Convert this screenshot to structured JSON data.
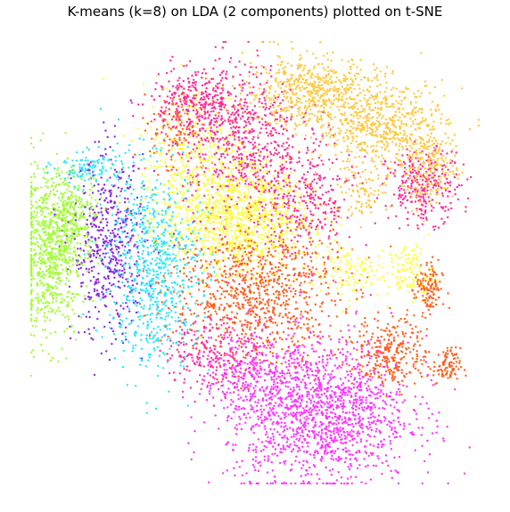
{
  "chart_data": {
    "type": "scatter",
    "title": "K-means (k=8) on LDA (2 components) plotted on t-SNE",
    "xlabel": "",
    "ylabel": "",
    "axes_visible": false,
    "grid": false,
    "legend": "none",
    "xlim": [
      0,
      100
    ],
    "ylim": [
      0,
      100
    ],
    "series": [
      {
        "color": "#9eff2e",
        "clusters": [
          {
            "cx": 5,
            "cy": 52,
            "sx": 3.5,
            "sy": 9,
            "n": 700
          },
          {
            "cx": 10,
            "cy": 60,
            "sx": 3,
            "sy": 5,
            "n": 250
          }
        ]
      },
      {
        "color": "#8a2be2",
        "clusters": [
          {
            "cx": 18,
            "cy": 53,
            "sx": 4,
            "sy": 10,
            "n": 500
          }
        ]
      },
      {
        "color": "#29e6ff",
        "clusters": [
          {
            "cx": 28,
            "cy": 49,
            "sx": 5,
            "sy": 11,
            "n": 750
          },
          {
            "cx": 14,
            "cy": 71,
            "sx": 4,
            "sy": 2,
            "n": 120
          }
        ]
      },
      {
        "color": "#ffff33",
        "clusters": [
          {
            "cx": 46,
            "cy": 60,
            "sx": 8,
            "sy": 6,
            "n": 1050
          },
          {
            "cx": 37,
            "cy": 74,
            "sx": 6,
            "sy": 8,
            "n": 350
          },
          {
            "cx": 84,
            "cy": 48,
            "sx": 2.5,
            "sy": 3,
            "n": 120
          },
          {
            "cx": 70,
            "cy": 48,
            "sx": 4,
            "sy": 3,
            "n": 120
          }
        ]
      },
      {
        "color": "#ff2d95",
        "clusters": [
          {
            "cx": 46,
            "cy": 78,
            "sx": 7,
            "sy": 8,
            "n": 650
          },
          {
            "cx": 37,
            "cy": 86,
            "sx": 5,
            "sy": 3,
            "n": 250
          },
          {
            "cx": 60,
            "cy": 64,
            "sx": 6,
            "sy": 7,
            "n": 350
          },
          {
            "cx": 87,
            "cy": 67,
            "sx": 4,
            "sy": 4,
            "n": 280
          },
          {
            "cx": 40,
            "cy": 30,
            "sx": 5,
            "sy": 4,
            "n": 180
          }
        ]
      },
      {
        "color": "#ffc93c",
        "clusters": [
          {
            "cx": 62,
            "cy": 88,
            "sx": 7,
            "sy": 4,
            "n": 550
          },
          {
            "cx": 78,
            "cy": 80,
            "sx": 7,
            "sy": 5,
            "n": 600
          },
          {
            "cx": 88,
            "cy": 71,
            "sx": 3,
            "sy": 4,
            "n": 220
          },
          {
            "cx": 73,
            "cy": 65,
            "sx": 3,
            "sy": 2.5,
            "n": 80
          }
        ]
      },
      {
        "color": "#ff5f1f",
        "clusters": [
          {
            "cx": 50,
            "cy": 44,
            "sx": 9,
            "sy": 8,
            "n": 950
          },
          {
            "cx": 80,
            "cy": 30,
            "sx": 4,
            "sy": 4,
            "n": 280
          },
          {
            "cx": 88,
            "cy": 44,
            "sx": 1.5,
            "sy": 3,
            "n": 130
          },
          {
            "cx": 92,
            "cy": 27,
            "sx": 1.5,
            "sy": 2,
            "n": 90
          },
          {
            "cx": 32,
            "cy": 80,
            "sx": 2.5,
            "sy": 4,
            "n": 90
          }
        ]
      },
      {
        "color": "#ff33ff",
        "clusters": [
          {
            "cx": 64,
            "cy": 17,
            "sx": 10,
            "sy": 8,
            "n": 1500
          },
          {
            "cx": 48,
            "cy": 26,
            "sx": 5,
            "sy": 5,
            "n": 250
          }
        ]
      }
    ]
  }
}
